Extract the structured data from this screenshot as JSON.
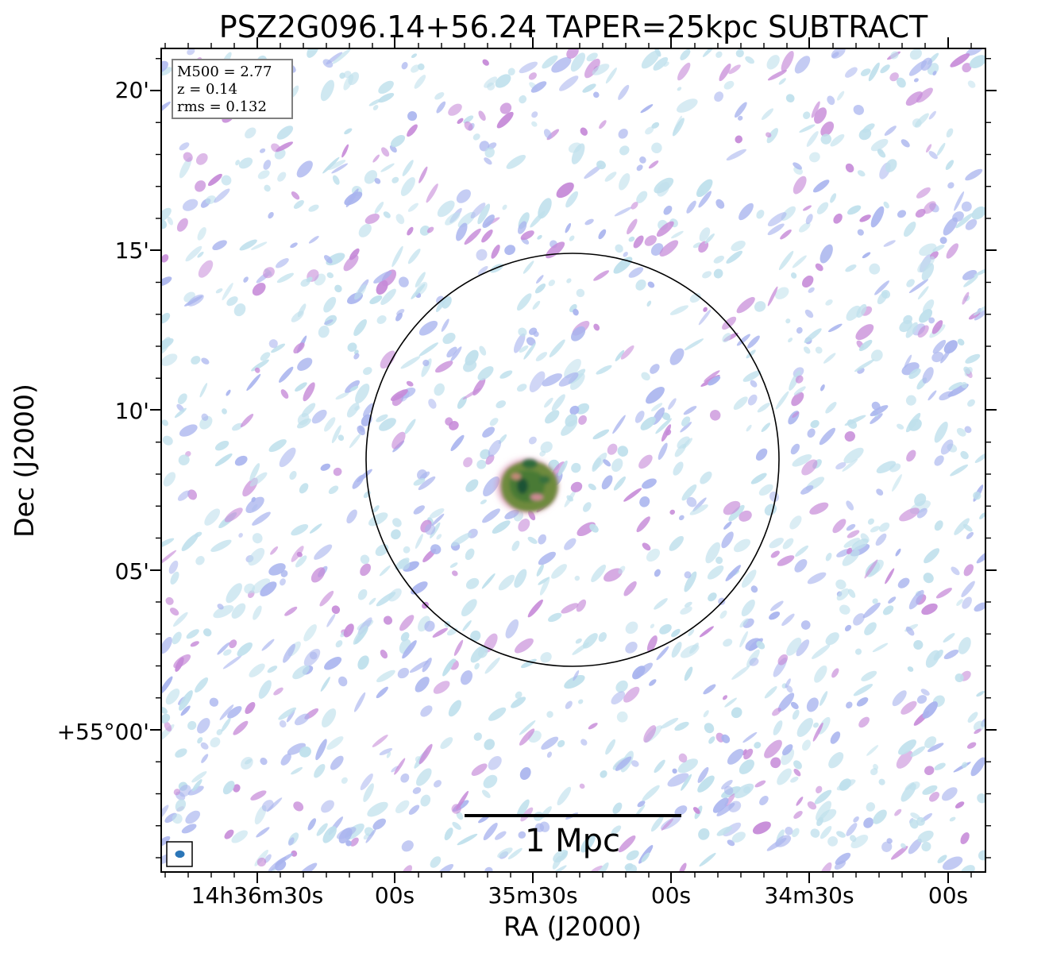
{
  "title": "PSZ2G096.14+56.24 TAPER=25kpc SUBTRACT",
  "axes": {
    "xlabel": "RA (J2000)",
    "ylabel": "Dec (J2000)",
    "x_ticks": [
      "14h36m30s",
      "00s",
      "35m30s",
      "00s",
      "34m30s",
      "00s"
    ],
    "y_ticks": [
      "20'",
      "15'",
      "10'",
      "05'",
      "+55°00'"
    ]
  },
  "info_box": {
    "m500": "M500 = 2.77",
    "z": "z = 0.14",
    "rms": "rms = 0.132"
  },
  "scalebar": {
    "label": "1 Mpc"
  },
  "colors": {
    "noise_light": "#bfe0ec",
    "noise_mid": "#a9b4ee",
    "noise_high": "#c68ad8",
    "source_green": "#4f8a3a",
    "source_dark": "#1c5a3a",
    "source_rim": "#c9758f",
    "beam": "#2b76b8",
    "frame": "#000000"
  },
  "icons": {
    "beam": "beam-ellipse-icon"
  }
}
